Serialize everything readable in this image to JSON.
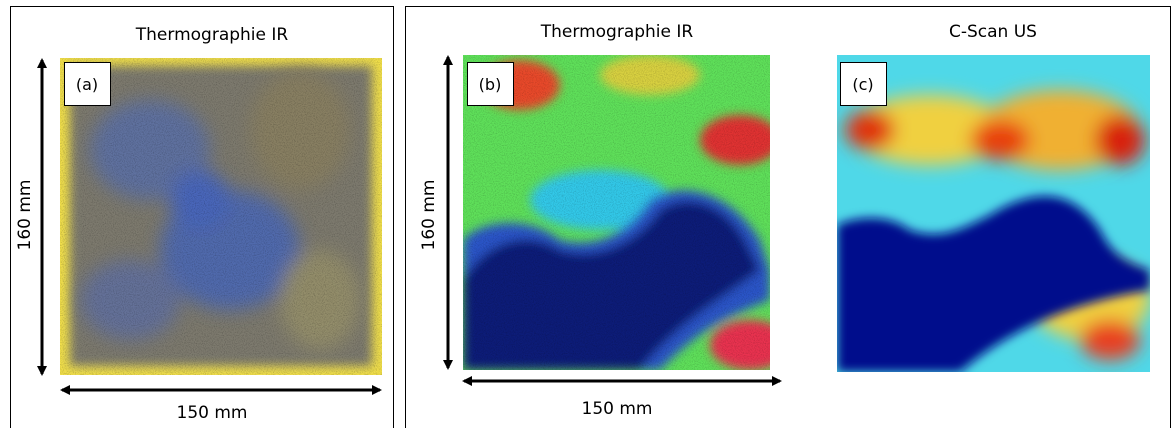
{
  "panels": [
    {
      "title": "Thermographie IR",
      "label": "(a)",
      "height_label": "160 mm",
      "width_label": "150 mm"
    },
    {
      "title": "Thermographie IR",
      "label": "(b)",
      "height_label": "160 mm",
      "width_label": "150 mm"
    },
    {
      "title": "C-Scan US",
      "label": "(c)"
    }
  ]
}
